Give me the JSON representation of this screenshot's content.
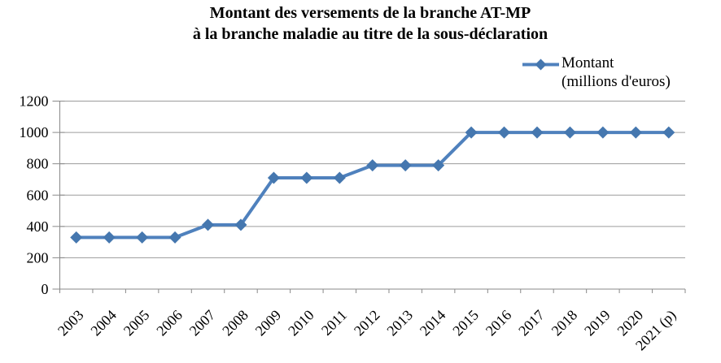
{
  "title": {
    "line1": "Montant des versements de la branche AT-MP",
    "line2": "à la branche maladie au titre de la sous-déclaration"
  },
  "legend": {
    "line1": "Montant",
    "line2": "(millions d'euros)"
  },
  "colors": {
    "series_line": "#4F81BD",
    "marker_fill": "#4577AF",
    "gridline": "#9C9C9C",
    "axis": "#898989",
    "text": "#000000",
    "background": "#FFFFFF"
  },
  "chart_data": {
    "type": "line",
    "title": "Montant des versements de la branche AT-MP à la branche maladie au titre de la sous-déclaration",
    "categories": [
      "2003",
      "2004",
      "2005",
      "2006",
      "2007",
      "2008",
      "2009",
      "2010",
      "2011",
      "2012",
      "2013",
      "2014",
      "2015",
      "2016",
      "2017",
      "2018",
      "2019",
      "2020",
      "2021 (p)"
    ],
    "series": [
      {
        "name": "Montant (millions d'euros)",
        "values": [
          330,
          330,
          330,
          330,
          410,
          410,
          710,
          710,
          710,
          790,
          790,
          790,
          1000,
          1000,
          1000,
          1000,
          1000,
          1000,
          1000
        ]
      }
    ],
    "xlabel": "",
    "ylabel": "",
    "ylim": [
      0,
      1200
    ],
    "ytick_step": 200,
    "grid": true,
    "legend_position": "top-right",
    "marker": "diamond",
    "x_label_rotation": -45
  }
}
